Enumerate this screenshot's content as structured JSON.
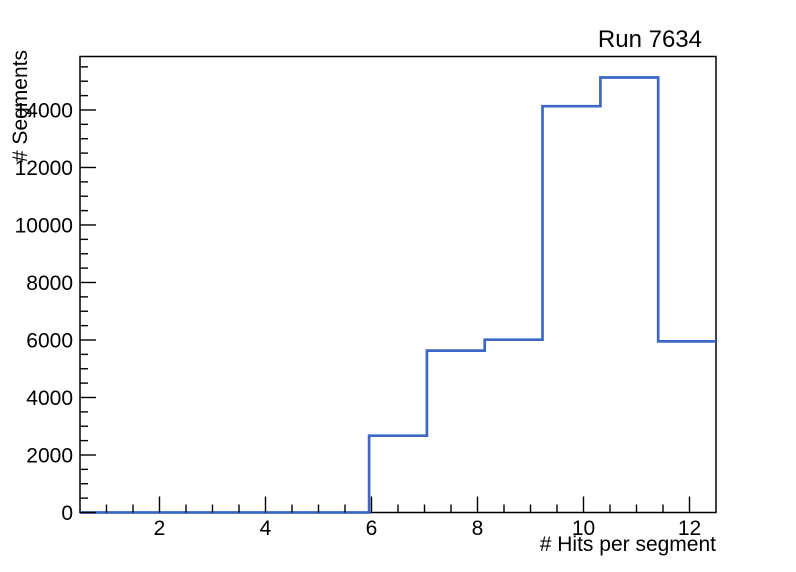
{
  "chart": {
    "title": "Run 7634",
    "x_axis_title": "# Hits per segment",
    "y_axis_title": "# Segments"
  },
  "colors": {
    "line": "#3b67c5",
    "axis": "#000000",
    "background": "#ffffff",
    "text": "#000000"
  },
  "chart_data": {
    "type": "histogram",
    "title": "Run 7634",
    "xlabel": "# Hits per segment",
    "ylabel": "# Segments",
    "xlim": [
      0.5,
      12.5
    ],
    "ylim": [
      0,
      15860
    ],
    "n_bins": 11,
    "bin_edges": [
      0.5,
      1.591,
      2.682,
      3.773,
      4.864,
      5.955,
      7.045,
      8.136,
      9.227,
      10.318,
      11.409,
      12.5
    ],
    "values": [
      0,
      0,
      0,
      0,
      0,
      2670,
      5630,
      6010,
      14130,
      15130,
      5950
    ],
    "x_major_ticks": [
      2,
      4,
      6,
      8,
      10,
      12
    ],
    "x_tick_labels": [
      "2",
      "4",
      "6",
      "8",
      "10",
      "12"
    ],
    "x_minor_step": 0.5,
    "y_major_ticks": [
      0,
      2000,
      4000,
      6000,
      8000,
      10000,
      12000,
      14000
    ],
    "y_tick_labels": [
      "0",
      "2000",
      "4000",
      "6000",
      "8000",
      "10000",
      "12000",
      "14000"
    ],
    "y_minor_step": 500,
    "grid": false,
    "legend": null
  }
}
